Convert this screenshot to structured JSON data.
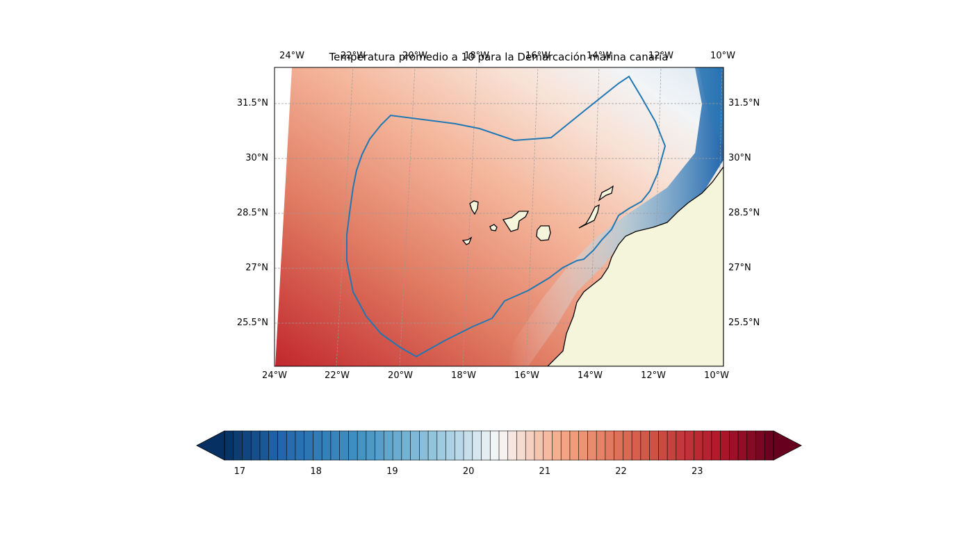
{
  "figure": {
    "title": "Temperatura promedio a 10 para la Demarcación marina canaria"
  },
  "map": {
    "lon_range": [
      -24,
      -9.8
    ],
    "lat_range": [
      24.3,
      32.5
    ],
    "lon_labels_bottom": [
      "24°W",
      "22°W",
      "20°W",
      "18°W",
      "16°W",
      "14°W",
      "12°W",
      "10°W"
    ],
    "lon_labels_top": [
      "24°W",
      "22°W",
      "20°W",
      "18°W",
      "16°W",
      "14°W",
      "12°W",
      "10°W"
    ],
    "lat_labels": [
      "25.5°N",
      "27°N",
      "28.5°N",
      "30°N",
      "31.5°N"
    ],
    "gridlines": true,
    "land_color": "#f5f5dc",
    "boundary_color": "#1f77b4",
    "colormap": "RdBu_r"
  },
  "colorbar": {
    "min": 16.8,
    "max": 24.0,
    "tick_labels": [
      "17",
      "18",
      "19",
      "20",
      "21",
      "22",
      "23"
    ],
    "extend": "both"
  }
}
